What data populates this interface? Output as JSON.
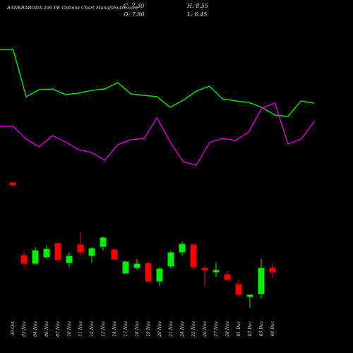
{
  "chart_data": [
    {
      "type": "line",
      "x": [
        0,
        1,
        2,
        3,
        4,
        5,
        6,
        7,
        8,
        9,
        10,
        11,
        12,
        13,
        14,
        15,
        16,
        17,
        18,
        19,
        20,
        21,
        22,
        23,
        24
      ],
      "xlim": [
        0,
        24
      ],
      "ylim": [
        0,
        100
      ],
      "series": [
        {
          "color": "#00dd00",
          "values": [
            85,
            85,
            51.5,
            56.5,
            57,
            53,
            54,
            56,
            57,
            61.5,
            53.5,
            52.5,
            51.5,
            44,
            49,
            55.5,
            59,
            50,
            48.5,
            47.5,
            44,
            38.5,
            37.5,
            48.5,
            47
          ]
        },
        {
          "color": "#cc00cc",
          "values": [
            30.5,
            30.5,
            21.5,
            16,
            24,
            19.5,
            14,
            12,
            6.5,
            17.5,
            21,
            22,
            36.5,
            19.5,
            5.5,
            3,
            19,
            22,
            20.5,
            26.5,
            43.5,
            47,
            18,
            21.5,
            34
          ]
        }
      ]
    },
    {
      "type": "candlestick",
      "title": "BANKBARODA 290 PE Options Chart MunafaSutra.com",
      "summary": [
        "C: 7.30",
        "O: 7.80",
        "H: 8.55",
        "L: 6.45"
      ],
      "categories": [
        null,
        "03 Nov",
        "04 Nov",
        "06 Nov",
        "07 Nov",
        "10 Nov",
        "11 Nov",
        "12 Nov",
        "13 Nov",
        "14 Nov",
        "17 Nov",
        "18 Nov",
        "19 Nov",
        "20 Nov",
        "21 Nov",
        "24 Nov",
        "25 Nov",
        "26 Nov",
        "27 Nov",
        "28 Nov",
        "01 Dec",
        "02 Dec",
        "03 Dec",
        "04 Dec"
      ],
      "first_label": "30 Oct",
      "open": [
        19.9,
        9.6,
        8.5,
        9.4,
        11.3,
        8.6,
        11.1,
        9.6,
        10.9,
        10.4,
        7.1,
        7.9,
        8.5,
        6.0,
        8.1,
        10.1,
        11.1,
        7.8,
        7.3,
        6.9,
        5.5,
        3.8,
        4.2,
        7.8
      ],
      "high": [
        19.9,
        10.1,
        10.8,
        11.0,
        11.5,
        10.1,
        13.0,
        10.8,
        12.3,
        10.6,
        8.9,
        9.1,
        8.7,
        7.9,
        10.3,
        11.6,
        11.3,
        8.0,
        8.6,
        7.4,
        6.1,
        4.1,
        9.1,
        8.55
      ],
      "low": [
        19.6,
        8.0,
        8.3,
        9.2,
        8.8,
        7.9,
        9.6,
        8.6,
        10.3,
        9.0,
        7.0,
        7.6,
        5.9,
        5.3,
        7.8,
        9.6,
        7.6,
        5.2,
        6.6,
        6.1,
        3.9,
        2.2,
        3.5,
        6.45
      ],
      "close": [
        19.6,
        8.5,
        10.3,
        10.5,
        9.0,
        9.5,
        10.1,
        10.6,
        12.1,
        9.1,
        8.7,
        8.4,
        6.0,
        7.7,
        10.0,
        11.2,
        8.0,
        7.6,
        7.5,
        6.2,
        4.1,
        4.0,
        7.8,
        7.3
      ],
      "up_color": "#00ee00",
      "down_color": "#ff0000",
      "ylim": [
        1.8,
        21.8
      ]
    }
  ]
}
